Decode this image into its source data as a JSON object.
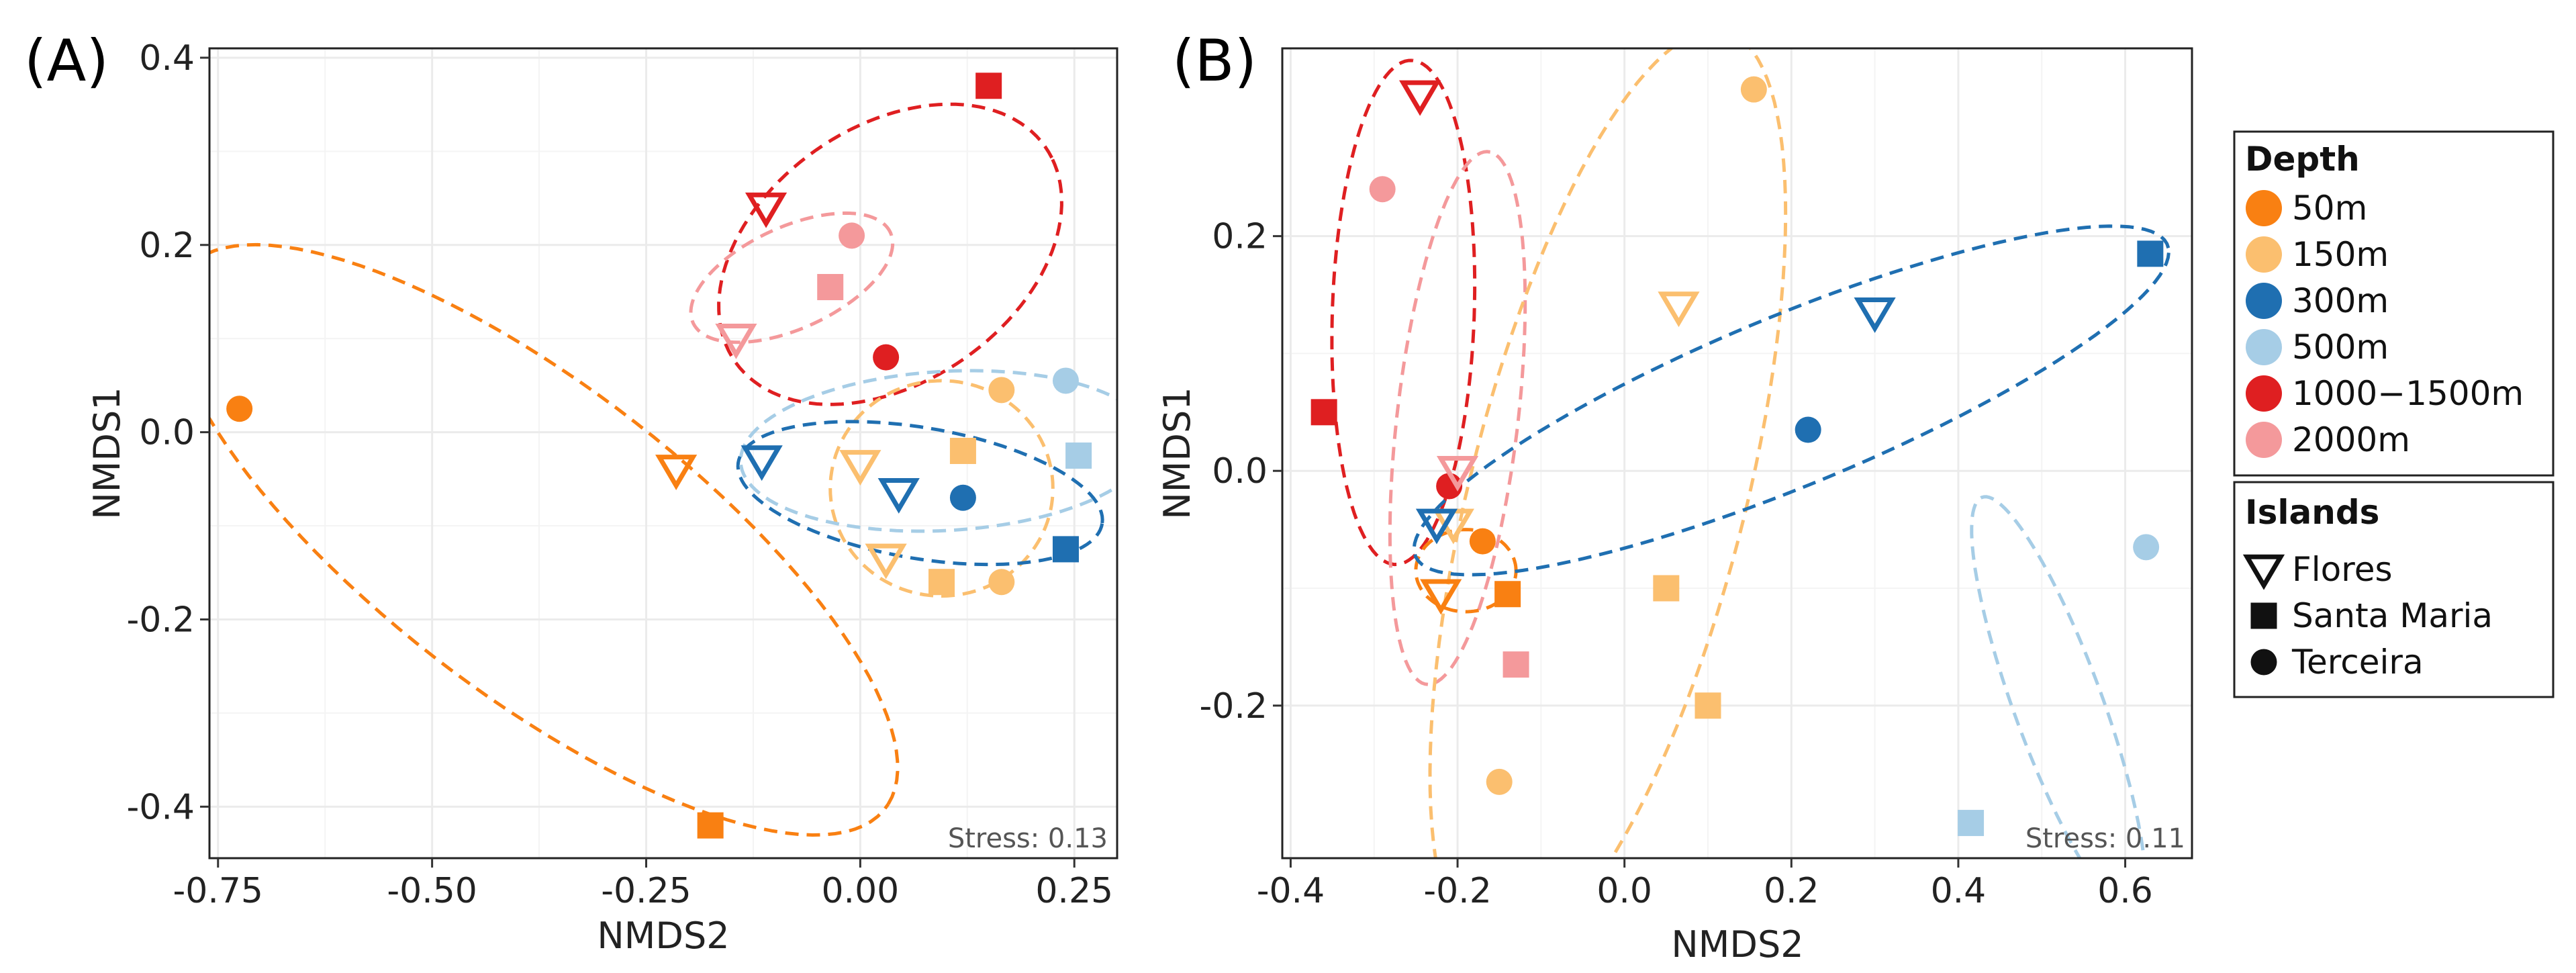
{
  "colors": {
    "d50": "#f98012",
    "d150": "#fbbf6f",
    "d300": "#1f6fb1",
    "d500": "#a6cde6",
    "d1000": "#df1f21",
    "d2000": "#f4999b",
    "grid": "#ebebeb",
    "frame": "#222222",
    "stress": "#555555"
  },
  "chart_data": [
    {
      "type": "scatter",
      "panel_label": "(A)",
      "xlabel": "NMDS2",
      "ylabel": "NMDS1",
      "xlim": [
        -0.76,
        0.3
      ],
      "ylim": [
        -0.455,
        0.41
      ],
      "xticks": [
        -0.75,
        -0.5,
        -0.25,
        0.0,
        0.25
      ],
      "xtick_labels": [
        "-0.75",
        "-0.50",
        "-0.25",
        "0.00",
        "0.25"
      ],
      "yticks": [
        -0.4,
        -0.2,
        0.0,
        0.2,
        0.4
      ],
      "ytick_labels": [
        "-0.4",
        "-0.2",
        "0.0",
        "0.2",
        "0.4"
      ],
      "stress_label": "Stress: 0.13",
      "points": [
        {
          "x": 0.15,
          "y": 0.37,
          "depth": "d1000",
          "island": "Santa Maria"
        },
        {
          "x": -0.11,
          "y": 0.24,
          "depth": "d1000",
          "island": "Flores"
        },
        {
          "x": 0.03,
          "y": 0.08,
          "depth": "d1000",
          "island": "Terceira"
        },
        {
          "x": -0.01,
          "y": 0.21,
          "depth": "d2000",
          "island": "Terceira"
        },
        {
          "x": -0.035,
          "y": 0.155,
          "depth": "d2000",
          "island": "Santa Maria"
        },
        {
          "x": -0.145,
          "y": 0.1,
          "depth": "d2000",
          "island": "Flores"
        },
        {
          "x": -0.725,
          "y": 0.025,
          "depth": "d50",
          "island": "Terceira"
        },
        {
          "x": -0.215,
          "y": -0.04,
          "depth": "d50",
          "island": "Flores"
        },
        {
          "x": -0.175,
          "y": -0.42,
          "depth": "d50",
          "island": "Santa Maria"
        },
        {
          "x": 0.165,
          "y": 0.045,
          "depth": "d150",
          "island": "Terceira"
        },
        {
          "x": 0.12,
          "y": -0.02,
          "depth": "d150",
          "island": "Santa Maria"
        },
        {
          "x": 0.0,
          "y": -0.035,
          "depth": "d150",
          "island": "Flores"
        },
        {
          "x": 0.03,
          "y": -0.135,
          "depth": "d150",
          "island": "Flores"
        },
        {
          "x": 0.095,
          "y": -0.16,
          "depth": "d150",
          "island": "Santa Maria"
        },
        {
          "x": 0.165,
          "y": -0.16,
          "depth": "d150",
          "island": "Terceira"
        },
        {
          "x": -0.115,
          "y": -0.03,
          "depth": "d300",
          "island": "Flores"
        },
        {
          "x": 0.045,
          "y": -0.065,
          "depth": "d300",
          "island": "Flores"
        },
        {
          "x": 0.12,
          "y": -0.07,
          "depth": "d300",
          "island": "Terceira"
        },
        {
          "x": 0.24,
          "y": -0.125,
          "depth": "d300",
          "island": "Santa Maria"
        },
        {
          "x": 0.24,
          "y": 0.055,
          "depth": "d500",
          "island": "Terceira"
        },
        {
          "x": 0.255,
          "y": -0.025,
          "depth": "d500",
          "island": "Santa Maria"
        }
      ],
      "ellipses": [
        {
          "depth": "d1000",
          "cx": 0.035,
          "cy": 0.19,
          "rx": 0.215,
          "ry": 0.14,
          "rot": 0.5
        },
        {
          "depth": "d2000",
          "cx": -0.08,
          "cy": 0.165,
          "rx": 0.125,
          "ry": 0.055,
          "rot": 0.38
        },
        {
          "depth": "d50",
          "cx": -0.38,
          "cy": -0.115,
          "rx": 0.5,
          "ry": 0.17,
          "rot": -0.6
        },
        {
          "depth": "d150",
          "cx": 0.095,
          "cy": -0.06,
          "rx": 0.13,
          "ry": 0.115,
          "rot": 0.0
        },
        {
          "depth": "d300",
          "cx": 0.07,
          "cy": -0.065,
          "rx": 0.215,
          "ry": 0.07,
          "rot": -0.15
        },
        {
          "depth": "d500",
          "cx": 0.1,
          "cy": -0.02,
          "rx": 0.24,
          "ry": 0.085,
          "rot": 0.05
        }
      ]
    },
    {
      "type": "scatter",
      "panel_label": "(B)",
      "xlabel": "NMDS2",
      "ylabel": "NMDS1",
      "xlim": [
        -0.41,
        0.68
      ],
      "ylim": [
        -0.33,
        0.36
      ],
      "xticks": [
        -0.4,
        -0.2,
        0.0,
        0.2,
        0.4,
        0.6
      ],
      "xtick_labels": [
        "-0.4",
        "-0.2",
        "0.0",
        "0.2",
        "0.4",
        "0.6"
      ],
      "yticks": [
        -0.2,
        0.0,
        0.2
      ],
      "ytick_labels": [
        "-0.2",
        "0.0",
        "0.2"
      ],
      "stress_label": "Stress: 0.11",
      "points": [
        {
          "x": -0.245,
          "y": 0.32,
          "depth": "d1000",
          "island": "Flores"
        },
        {
          "x": -0.36,
          "y": 0.05,
          "depth": "d1000",
          "island": "Santa Maria"
        },
        {
          "x": -0.21,
          "y": -0.013,
          "depth": "d1000",
          "island": "Terceira"
        },
        {
          "x": -0.29,
          "y": 0.24,
          "depth": "d2000",
          "island": "Terceira"
        },
        {
          "x": -0.2,
          "y": 0.0,
          "depth": "d2000",
          "island": "Flores"
        },
        {
          "x": -0.13,
          "y": -0.165,
          "depth": "d2000",
          "island": "Santa Maria"
        },
        {
          "x": 0.155,
          "y": 0.325,
          "depth": "d150",
          "island": "Terceira"
        },
        {
          "x": 0.065,
          "y": 0.14,
          "depth": "d150",
          "island": "Flores"
        },
        {
          "x": -0.205,
          "y": -0.045,
          "depth": "d150",
          "island": "Flores"
        },
        {
          "x": 0.05,
          "y": -0.1,
          "depth": "d150",
          "island": "Santa Maria"
        },
        {
          "x": 0.1,
          "y": -0.2,
          "depth": "d150",
          "island": "Santa Maria"
        },
        {
          "x": -0.15,
          "y": -0.265,
          "depth": "d150",
          "island": "Terceira"
        },
        {
          "x": -0.17,
          "y": -0.06,
          "depth": "d50",
          "island": "Terceira"
        },
        {
          "x": -0.22,
          "y": -0.105,
          "depth": "d50",
          "island": "Flores"
        },
        {
          "x": -0.14,
          "y": -0.105,
          "depth": "d50",
          "island": "Santa Maria"
        },
        {
          "x": 0.63,
          "y": 0.185,
          "depth": "d300",
          "island": "Santa Maria"
        },
        {
          "x": 0.3,
          "y": 0.135,
          "depth": "d300",
          "island": "Flores"
        },
        {
          "x": 0.22,
          "y": 0.035,
          "depth": "d300",
          "island": "Terceira"
        },
        {
          "x": -0.225,
          "y": -0.045,
          "depth": "d300",
          "island": "Flores"
        },
        {
          "x": 0.625,
          "y": -0.065,
          "depth": "d500",
          "island": "Terceira"
        },
        {
          "x": 0.415,
          "y": -0.3,
          "depth": "d500",
          "island": "Santa Maria"
        }
      ],
      "ellipses": [
        {
          "depth": "d1000",
          "cx": -0.265,
          "cy": 0.135,
          "rx": 0.215,
          "ry": 0.085,
          "rot": 1.52
        },
        {
          "depth": "d2000",
          "cx": -0.2,
          "cy": 0.045,
          "rx": 0.23,
          "ry": 0.072,
          "rot": 1.4
        },
        {
          "depth": "d150",
          "cx": -0.02,
          "cy": -0.02,
          "rx": 0.42,
          "ry": 0.16,
          "rot": 1.2
        },
        {
          "depth": "d50",
          "cx": -0.19,
          "cy": -0.085,
          "rx": 0.06,
          "ry": 0.035,
          "rot": 0.0
        },
        {
          "depth": "d300",
          "cx": 0.2,
          "cy": 0.06,
          "rx": 0.47,
          "ry": 0.075,
          "rot": 0.28
        },
        {
          "depth": "d500",
          "cx": 0.52,
          "cy": -0.2,
          "rx": 0.2,
          "ry": 0.05,
          "rot": -1.08
        }
      ]
    }
  ],
  "legend": {
    "depth_title": "Depth",
    "depth_items": [
      {
        "label": "50m",
        "color_key": "d50"
      },
      {
        "label": "150m",
        "color_key": "d150"
      },
      {
        "label": "300m",
        "color_key": "d300"
      },
      {
        "label": "500m",
        "color_key": "d500"
      },
      {
        "label": "1000−1500m",
        "color_key": "d1000"
      },
      {
        "label": "2000m",
        "color_key": "d2000"
      }
    ],
    "islands_title": "Islands",
    "island_items": [
      {
        "label": "Flores",
        "shape": "triangle-down-open"
      },
      {
        "label": "Santa Maria",
        "shape": "square"
      },
      {
        "label": "Terceira",
        "shape": "circle"
      }
    ]
  }
}
